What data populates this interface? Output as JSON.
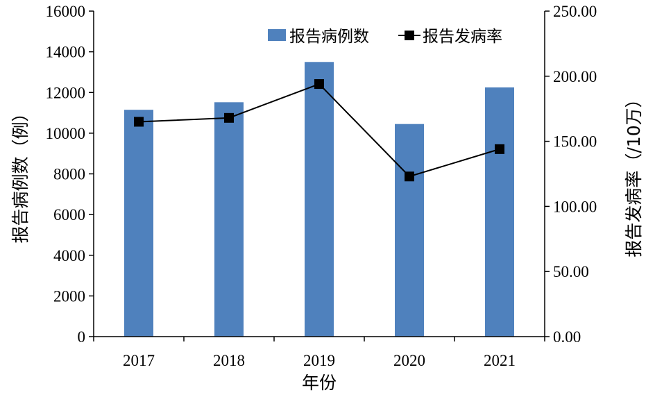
{
  "chart_data": {
    "type": "bar+line",
    "categories": [
      "2017",
      "2018",
      "2019",
      "2020",
      "2021"
    ],
    "series": [
      {
        "name": "报告病例数",
        "type": "bar",
        "axis": "left",
        "color": "#4F81BD",
        "values": [
          11150,
          11520,
          13500,
          10450,
          12250
        ]
      },
      {
        "name": "报告发病率",
        "type": "line",
        "axis": "right",
        "color": "#000000",
        "marker": "square",
        "values": [
          165.0,
          168.0,
          194.0,
          123.0,
          144.0
        ]
      }
    ],
    "xlabel": "年份",
    "ylabel_left": "报告病例数（例）",
    "ylabel_right": "报告发病率（/10万）",
    "ylim_left": [
      0,
      16000
    ],
    "yticks_left": [
      "0",
      "2000",
      "4000",
      "6000",
      "8000",
      "10000",
      "12000",
      "14000",
      "16000"
    ],
    "ylim_right": [
      0,
      250
    ],
    "yticks_right": [
      "0.00",
      "50.00",
      "100.00",
      "150.00",
      "200.00",
      "250.00"
    ],
    "grid": false,
    "legend_position": "top-right"
  }
}
